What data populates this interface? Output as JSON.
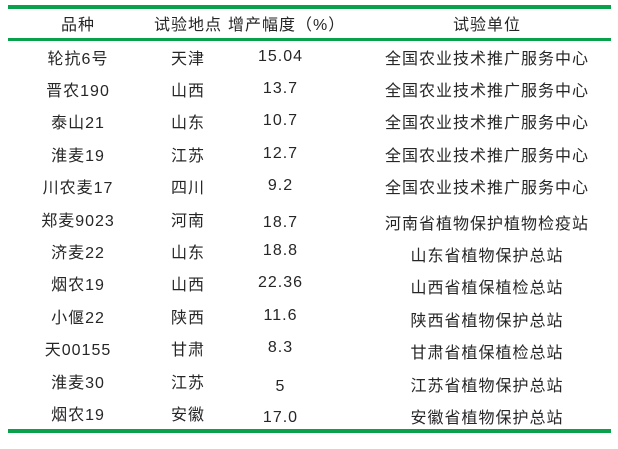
{
  "table": {
    "columns": {
      "variety": "品种",
      "location": "试验地点",
      "yield_increase": "增产幅度（%）",
      "unit": "试验单位"
    },
    "rows": [
      [
        "轮抗6号",
        "天津",
        "15.04",
        "全国农业技术推广服务中心"
      ],
      [
        "晋农190",
        "山西",
        "13.7",
        "全国农业技术推广服务中心"
      ],
      [
        "泰山21",
        "山东",
        "10.7",
        "全国农业技术推广服务中心"
      ],
      [
        "淮麦19",
        "江苏",
        "12.7",
        "全国农业技术推广服务中心"
      ],
      [
        "川农麦17",
        "四川",
        "9.2",
        "全国农业技术推广服务中心"
      ],
      [
        "郑麦9023",
        "河南",
        "18.7",
        "河南省植物保护植物检疫站"
      ],
      [
        "济麦22",
        "山东",
        "18.8",
        "山东省植物保护总站"
      ],
      [
        "烟农19",
        "山西",
        "22.36",
        "山西省植保植检总站"
      ],
      [
        "小偃22",
        "陕西",
        "11.6",
        "陕西省植物保护总站"
      ],
      [
        "天00155",
        "甘肃",
        "8.3",
        "甘肃省植保植检总站"
      ],
      [
        "淮麦30",
        "江苏",
        "5",
        "江苏省植物保护总站"
      ],
      [
        "烟农19",
        "安徽",
        "17.0",
        "安徽省植物保护总站"
      ]
    ]
  },
  "colors": {
    "rule_green": "#0aa14d",
    "text": "#262626",
    "background": "#ffffff"
  }
}
